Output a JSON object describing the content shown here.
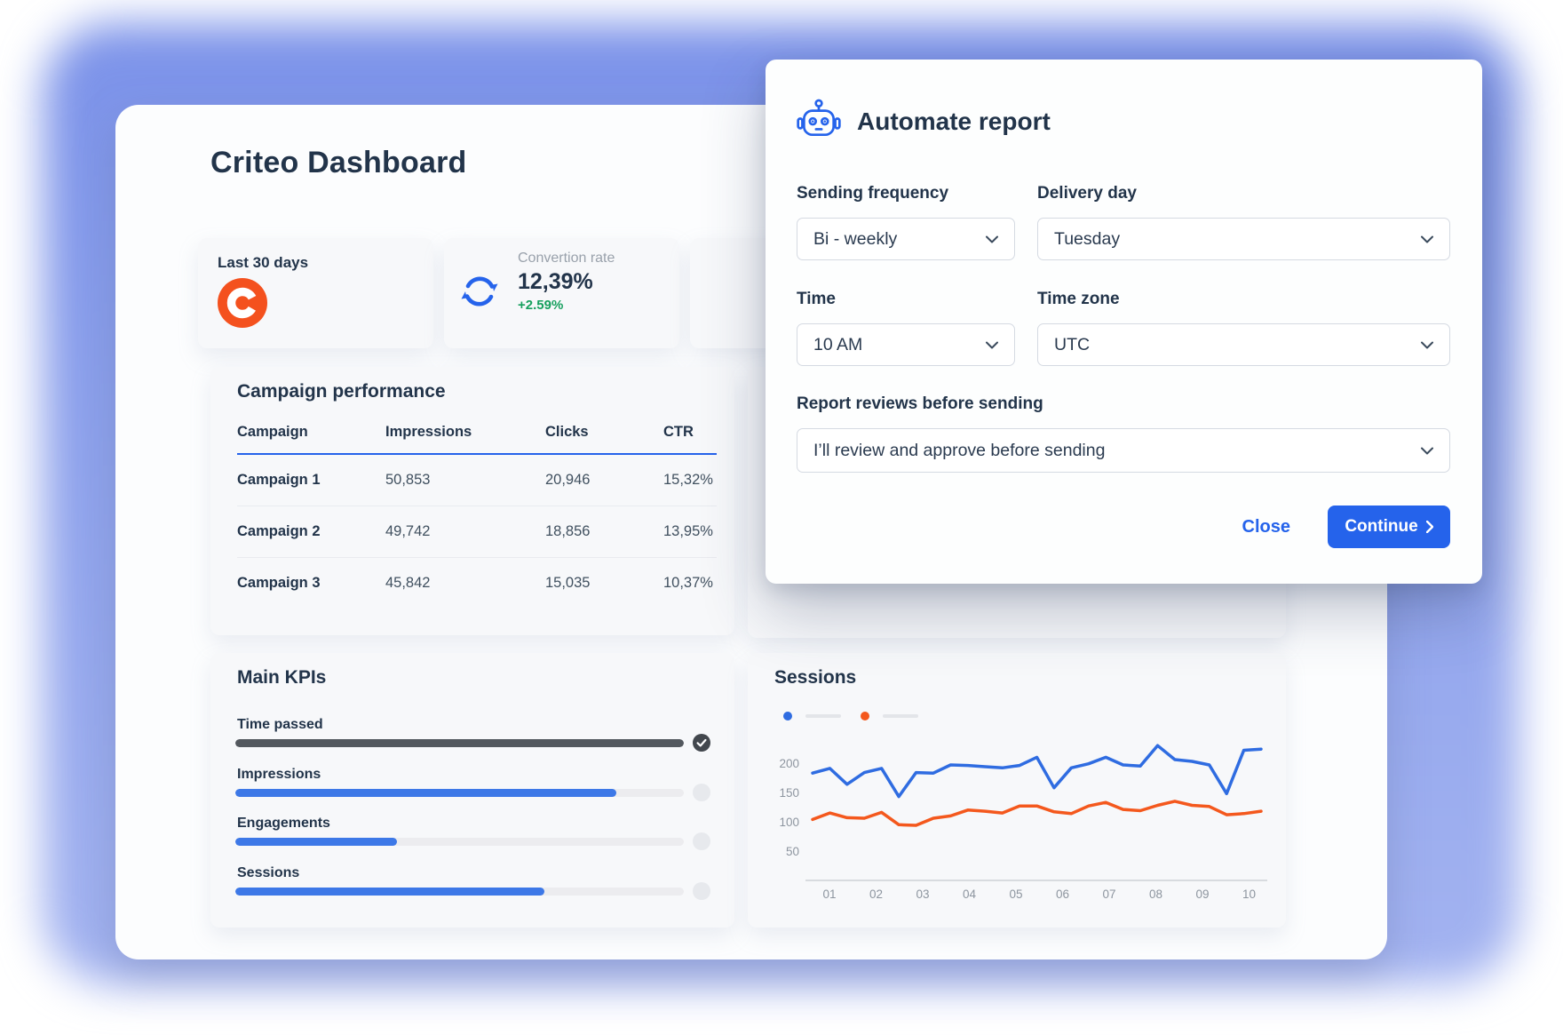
{
  "colors": {
    "accent_blue": "#2563eb",
    "progress_blue": "#3d78e7",
    "chart_blue": "#2f6ce1",
    "chart_orange": "#f4581d",
    "criteo_orange": "#f4511e",
    "positive_green": "#17a05e",
    "navy_text": "#22344a",
    "dark_bar": "#53585e"
  },
  "dashboard": {
    "title": "Criteo Dashboard",
    "period_card": {
      "label": "Last 30 days"
    },
    "conversion_card": {
      "label": "Convertion rate",
      "value": "12,39%",
      "delta": "+2.59%"
    },
    "campaign_performance": {
      "title": "Campaign performance",
      "columns": [
        "Campaign",
        "Impressions",
        "Clicks",
        "CTR"
      ],
      "rows": [
        [
          "Campaign 1",
          "50,853",
          "20,946",
          "15,32%"
        ],
        [
          "Campaign 2",
          "49,742",
          "18,856",
          "13,95%"
        ],
        [
          "Campaign 3",
          "45,842",
          "15,035",
          "10,37%"
        ]
      ]
    },
    "main_kpis": {
      "title": "Main KPIs",
      "items": [
        {
          "label": "Time passed",
          "percent": 100,
          "style": "dark",
          "complete": true
        },
        {
          "label": "Impressions",
          "percent": 85,
          "style": "blue",
          "complete": false
        },
        {
          "label": "Engagements",
          "percent": 36,
          "style": "blue",
          "complete": false
        },
        {
          "label": "Sessions",
          "percent": 69,
          "style": "blue",
          "complete": false
        }
      ]
    },
    "sessions_section": {
      "title": "Sessions"
    }
  },
  "chart_data": {
    "type": "line",
    "title": "Sessions",
    "x_tick_labels": [
      "01",
      "02",
      "03",
      "04",
      "05",
      "06",
      "07",
      "08",
      "09",
      "10"
    ],
    "y_ticks": [
      200,
      150,
      100,
      50
    ],
    "ylim": [
      0,
      240
    ],
    "grid": false,
    "legend_text_visible": false,
    "legend_position": "top-left",
    "series": [
      {
        "name": "sessions-blue",
        "color": "#2f6ce1",
        "values": [
          183,
          191,
          164,
          184,
          191,
          143,
          184,
          183,
          197,
          196,
          194,
          192,
          196,
          210,
          158,
          192,
          199,
          210,
          197,
          195,
          230,
          206,
          203,
          197,
          148,
          222,
          224
        ]
      },
      {
        "name": "sessions-orange",
        "color": "#f4581d",
        "values": [
          104,
          115,
          107,
          106,
          116,
          95,
          94,
          106,
          110,
          120,
          118,
          115,
          127,
          127,
          117,
          114,
          127,
          133,
          121,
          119,
          128,
          135,
          128,
          126,
          112,
          114,
          118
        ]
      }
    ]
  },
  "modal": {
    "title": "Automate report",
    "sending_frequency": {
      "label": "Sending frequency",
      "value": "Bi - weekly"
    },
    "delivery_day": {
      "label": "Delivery day",
      "value": "Tuesday"
    },
    "time": {
      "label": "Time",
      "value": "10 AM"
    },
    "time_zone": {
      "label": "Time zone",
      "value": "UTC"
    },
    "report_reviews": {
      "label": "Report reviews before sending",
      "value": "I’ll review and approve before sending"
    },
    "close_label": "Close",
    "continue_label": "Continue"
  }
}
